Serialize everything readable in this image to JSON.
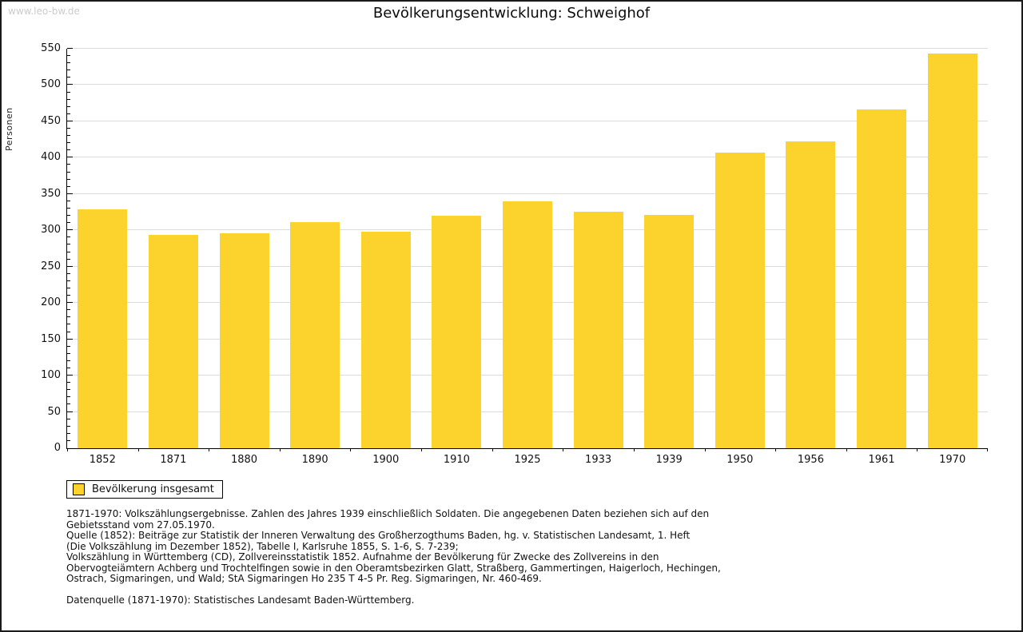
{
  "watermark": "www.leo-bw.de",
  "chart_data": {
    "type": "bar",
    "title": "Bevölkerungsentwicklung: Schweighof",
    "ylabel": "Personen",
    "categories": [
      "1852",
      "1871",
      "1880",
      "1890",
      "1900",
      "1910",
      "1925",
      "1933",
      "1939",
      "1950",
      "1956",
      "1961",
      "1970"
    ],
    "values": [
      329,
      294,
      296,
      311,
      298,
      320,
      340,
      326,
      321,
      407,
      422,
      466,
      543
    ],
    "ylim": [
      0,
      550
    ],
    "yticks": [
      0,
      50,
      100,
      150,
      200,
      250,
      300,
      350,
      400,
      450,
      500,
      550
    ],
    "ytick_minor_step": 10,
    "grid": true,
    "legend": {
      "label": "Bevölkerung insgesamt",
      "position": "bottom-left"
    },
    "colors": {
      "bar": "#FCD22C",
      "grid": "#DCDCDC",
      "axis": "#000000"
    }
  },
  "footnotes": {
    "lines": [
      "1871-1970: Volkszählungsergebnisse. Zahlen des Jahres 1939 einschließlich Soldaten. Die angegebenen Daten beziehen sich auf den",
      "Gebietsstand vom 27.05.1970.",
      "Quelle (1852): Beiträge zur Statistik der Inneren Verwaltung des Großherzogthums Baden, hg. v. Statistischen Landesamt, 1. Heft",
      "(Die Volkszählung im Dezember 1852), Tabelle I, Karlsruhe 1855, S. 1-6, S. 7-239;",
      "Volkszählung in Württemberg (CD), Zollvereinsstatistik 1852. Aufnahme der Bevölkerung für Zwecke des Zollvereins in den",
      "Obervogteiämtern Achberg und Trochtelfingen sowie in den Oberamtsbezirken Glatt, Straßberg, Gammertingen, Haigerloch, Hechingen,",
      "Ostrach, Sigmaringen, und Wald; StA Sigmaringen Ho 235 T 4-5 Pr. Reg. Sigmaringen, Nr. 460-469."
    ],
    "datasource": "Datenquelle (1871-1970): Statistisches Landesamt Baden-Württemberg."
  }
}
